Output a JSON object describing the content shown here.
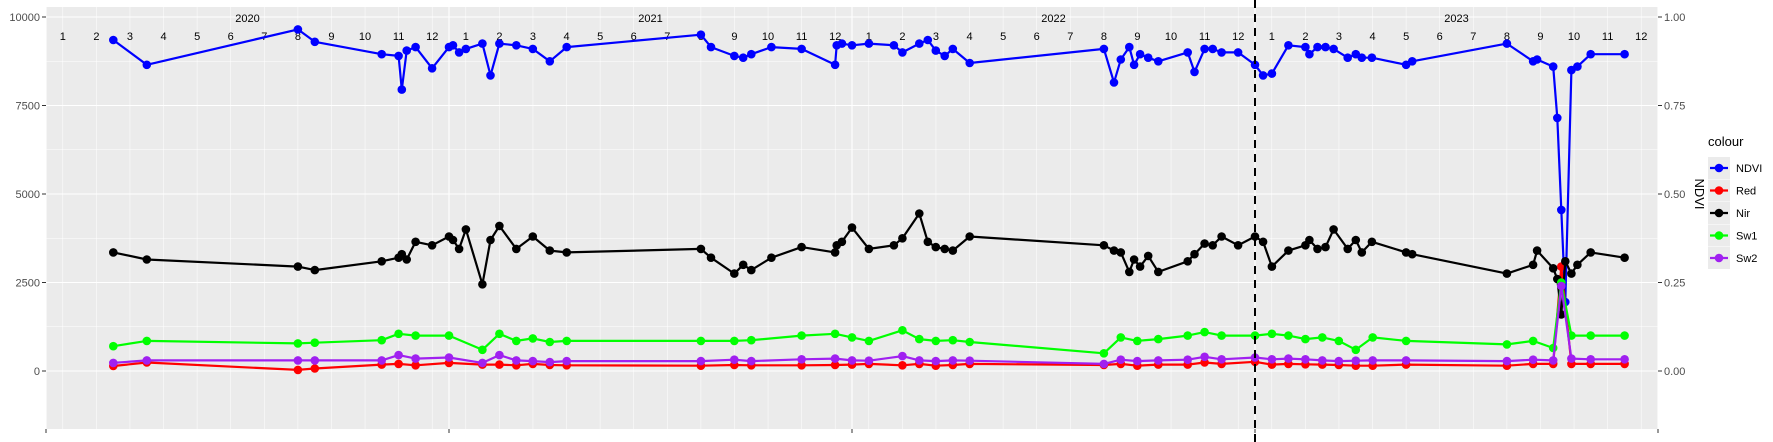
{
  "chart_data": {
    "type": "line",
    "y_left": {
      "ticks": [
        0,
        2500,
        5000,
        7500,
        10000
      ],
      "labels": [
        "0",
        "2500",
        "5000",
        "7500",
        "10000"
      ],
      "range": [
        0,
        10000
      ]
    },
    "y_right": {
      "title": "NDVI",
      "ticks": [
        0.0,
        0.25,
        0.5,
        0.75,
        1.0
      ],
      "labels": [
        "0.00",
        "0.25",
        "0.50",
        "0.75",
        "1.00"
      ],
      "range": [
        0,
        1
      ]
    },
    "grid": true,
    "legend_position": "right",
    "years": [
      {
        "label": "2020",
        "value": 2020.5
      },
      {
        "label": "2021",
        "value": 2021.5
      },
      {
        "label": "2022",
        "value": 2022.5
      },
      {
        "label": "2023",
        "value": 2023.5
      }
    ],
    "month_labels": [
      "1",
      "2",
      "3",
      "4",
      "5",
      "6",
      "7",
      "8",
      "9",
      "10",
      "11",
      "12"
    ],
    "vline_x": 2023.0,
    "legend": {
      "title": "colour"
    },
    "series": [
      {
        "name": "NDVI",
        "axis": "right",
        "color": "#0000ff",
        "x": [
          2020.167,
          2020.25,
          2020.625,
          2020.667,
          2020.833,
          2020.875,
          2020.883,
          2020.895,
          2020.917,
          2020.958,
          2021.0,
          2021.01,
          2021.025,
          2021.042,
          2021.083,
          2021.103,
          2021.125,
          2021.167,
          2021.208,
          2021.25,
          2021.292,
          2021.625,
          2021.65,
          2021.708,
          2021.73,
          2021.75,
          2021.8,
          2021.875,
          2021.958,
          2021.962,
          2021.975,
          2022.0,
          2022.042,
          2022.104,
          2022.125,
          2022.167,
          2022.188,
          2022.208,
          2022.23,
          2022.25,
          2022.292,
          2022.625,
          2022.65,
          2022.667,
          2022.688,
          2022.7,
          2022.715,
          2022.735,
          2022.76,
          2022.833,
          2022.85,
          2022.875,
          2022.895,
          2022.917,
          2022.958,
          2023.0,
          2023.02,
          2023.042,
          2023.083,
          2023.125,
          2023.135,
          2023.155,
          2023.175,
          2023.195,
          2023.23,
          2023.25,
          2023.265,
          2023.29,
          2023.375,
          2023.39,
          2023.625,
          2023.69,
          2023.7,
          2023.74,
          2023.75,
          2023.76,
          2023.77,
          2023.785,
          2023.8,
          2023.833,
          2023.917
        ],
        "y": [
          0.935,
          0.865,
          0.965,
          0.93,
          0.895,
          0.89,
          0.795,
          0.905,
          0.915,
          0.855,
          0.915,
          0.92,
          0.9,
          0.91,
          0.925,
          0.835,
          0.925,
          0.92,
          0.91,
          0.875,
          0.915,
          0.95,
          0.915,
          0.89,
          0.885,
          0.895,
          0.915,
          0.91,
          0.865,
          0.92,
          0.925,
          0.92,
          0.925,
          0.92,
          0.9,
          0.925,
          0.935,
          0.905,
          0.89,
          0.91,
          0.87,
          0.91,
          0.815,
          0.88,
          0.915,
          0.865,
          0.895,
          0.885,
          0.875,
          0.9,
          0.845,
          0.91,
          0.91,
          0.9,
          0.9,
          0.865,
          0.835,
          0.84,
          0.92,
          0.915,
          0.895,
          0.915,
          0.915,
          0.91,
          0.885,
          0.895,
          0.885,
          0.885,
          0.865,
          0.875,
          0.925,
          0.875,
          0.88,
          0.86,
          0.715,
          0.455,
          0.195,
          0.85,
          0.86,
          0.895,
          0.895
        ]
      },
      {
        "name": "Red",
        "axis": "left",
        "color": "#ff0000",
        "x": [
          2020.167,
          2020.25,
          2020.625,
          2020.667,
          2020.833,
          2020.875,
          2020.917,
          2021.0,
          2021.083,
          2021.125,
          2021.167,
          2021.208,
          2021.25,
          2021.292,
          2021.625,
          2021.708,
          2021.75,
          2021.875,
          2021.958,
          2022.0,
          2022.042,
          2022.125,
          2022.167,
          2022.208,
          2022.25,
          2022.292,
          2022.625,
          2022.667,
          2022.708,
          2022.76,
          2022.833,
          2022.875,
          2022.917,
          2023.0,
          2023.042,
          2023.083,
          2023.125,
          2023.167,
          2023.208,
          2023.25,
          2023.292,
          2023.375,
          2023.625,
          2023.69,
          2023.74,
          2023.76,
          2023.785,
          2023.833,
          2023.917
        ],
        "y": [
          140,
          240,
          30,
          70,
          180,
          200,
          160,
          230,
          180,
          180,
          160,
          200,
          170,
          160,
          150,
          170,
          160,
          160,
          170,
          180,
          200,
          160,
          200,
          150,
          170,
          200,
          170,
          200,
          150,
          180,
          180,
          240,
          200,
          260,
          180,
          200,
          190,
          180,
          170,
          150,
          150,
          180,
          150,
          200,
          200,
          2950,
          200,
          200,
          200
        ]
      },
      {
        "name": "Nir",
        "axis": "left",
        "color": "#000000",
        "x": [
          2020.167,
          2020.25,
          2020.625,
          2020.667,
          2020.833,
          2020.875,
          2020.883,
          2020.895,
          2020.917,
          2020.958,
          2021.0,
          2021.01,
          2021.025,
          2021.042,
          2021.083,
          2021.103,
          2021.125,
          2021.167,
          2021.208,
          2021.25,
          2021.292,
          2021.625,
          2021.65,
          2021.708,
          2021.73,
          2021.75,
          2021.8,
          2021.875,
          2021.958,
          2021.962,
          2021.975,
          2022.0,
          2022.042,
          2022.104,
          2022.125,
          2022.167,
          2022.188,
          2022.208,
          2022.23,
          2022.25,
          2022.292,
          2022.625,
          2022.65,
          2022.667,
          2022.688,
          2022.7,
          2022.715,
          2022.735,
          2022.76,
          2022.833,
          2022.85,
          2022.875,
          2022.895,
          2022.917,
          2022.958,
          2023.0,
          2023.02,
          2023.042,
          2023.083,
          2023.125,
          2023.135,
          2023.155,
          2023.175,
          2023.195,
          2023.23,
          2023.25,
          2023.265,
          2023.29,
          2023.375,
          2023.39,
          2023.625,
          2023.69,
          2023.7,
          2023.74,
          2023.75,
          2023.76,
          2023.77,
          2023.785,
          2023.8,
          2023.833,
          2023.917
        ],
        "y": [
          3350,
          3150,
          2950,
          2850,
          3100,
          3200,
          3300,
          3150,
          3650,
          3550,
          3800,
          3700,
          3450,
          4000,
          2450,
          3700,
          4100,
          3450,
          3800,
          3400,
          3350,
          3450,
          3200,
          2750,
          3000,
          2850,
          3200,
          3500,
          3350,
          3550,
          3650,
          4050,
          3450,
          3550,
          3750,
          4450,
          3650,
          3500,
          3450,
          3400,
          3800,
          3550,
          3400,
          3350,
          2800,
          3150,
          2950,
          3250,
          2800,
          3100,
          3300,
          3600,
          3550,
          3800,
          3550,
          3800,
          3650,
          2950,
          3400,
          3550,
          3700,
          3450,
          3500,
          4000,
          3450,
          3700,
          3350,
          3650,
          3350,
          3300,
          2750,
          3000,
          3400,
          2900,
          2600,
          1600,
          3100,
          2750,
          3000,
          3350,
          3200
        ]
      },
      {
        "name": "Sw1",
        "axis": "left",
        "color": "#00ff00",
        "x": [
          2020.167,
          2020.25,
          2020.625,
          2020.667,
          2020.833,
          2020.875,
          2020.917,
          2021.0,
          2021.083,
          2021.125,
          2021.167,
          2021.208,
          2021.25,
          2021.292,
          2021.625,
          2021.708,
          2021.75,
          2021.875,
          2021.958,
          2022.0,
          2022.042,
          2022.125,
          2022.167,
          2022.208,
          2022.25,
          2022.292,
          2022.625,
          2022.667,
          2022.708,
          2022.76,
          2022.833,
          2022.875,
          2022.917,
          2023.0,
          2023.042,
          2023.083,
          2023.125,
          2023.167,
          2023.208,
          2023.25,
          2023.292,
          2023.375,
          2023.625,
          2023.69,
          2023.74,
          2023.76,
          2023.785,
          2023.833,
          2023.917
        ],
        "y": [
          700,
          850,
          780,
          800,
          870,
          1050,
          1000,
          1000,
          600,
          1050,
          850,
          920,
          820,
          850,
          850,
          850,
          870,
          1000,
          1050,
          950,
          850,
          1150,
          900,
          850,
          870,
          820,
          500,
          950,
          850,
          900,
          1000,
          1100,
          1000,
          1000,
          1050,
          1000,
          900,
          950,
          850,
          600,
          950,
          850,
          750,
          850,
          650,
          2500,
          1000,
          1000,
          1000
        ]
      },
      {
        "name": "Sw2",
        "axis": "left",
        "color": "#a020f0",
        "x": [
          2020.167,
          2020.25,
          2020.625,
          2020.667,
          2020.833,
          2020.875,
          2020.917,
          2021.0,
          2021.083,
          2021.125,
          2021.167,
          2021.208,
          2021.25,
          2021.292,
          2021.625,
          2021.708,
          2021.75,
          2021.875,
          2021.958,
          2022.0,
          2022.042,
          2022.125,
          2022.167,
          2022.208,
          2022.25,
          2022.292,
          2022.625,
          2022.667,
          2022.708,
          2022.76,
          2022.833,
          2022.875,
          2022.917,
          2023.0,
          2023.042,
          2023.083,
          2023.125,
          2023.167,
          2023.208,
          2023.25,
          2023.292,
          2023.375,
          2023.625,
          2023.69,
          2023.74,
          2023.76,
          2023.785,
          2023.833,
          2023.917
        ],
        "y": [
          230,
          300,
          300,
          300,
          300,
          450,
          350,
          380,
          230,
          450,
          300,
          280,
          250,
          280,
          280,
          320,
          280,
          330,
          350,
          300,
          290,
          420,
          300,
          280,
          300,
          290,
          200,
          320,
          280,
          300,
          320,
          400,
          330,
          380,
          330,
          350,
          330,
          300,
          280,
          290,
          300,
          300,
          280,
          320,
          300,
          2400,
          350,
          330,
          330
        ]
      }
    ]
  }
}
